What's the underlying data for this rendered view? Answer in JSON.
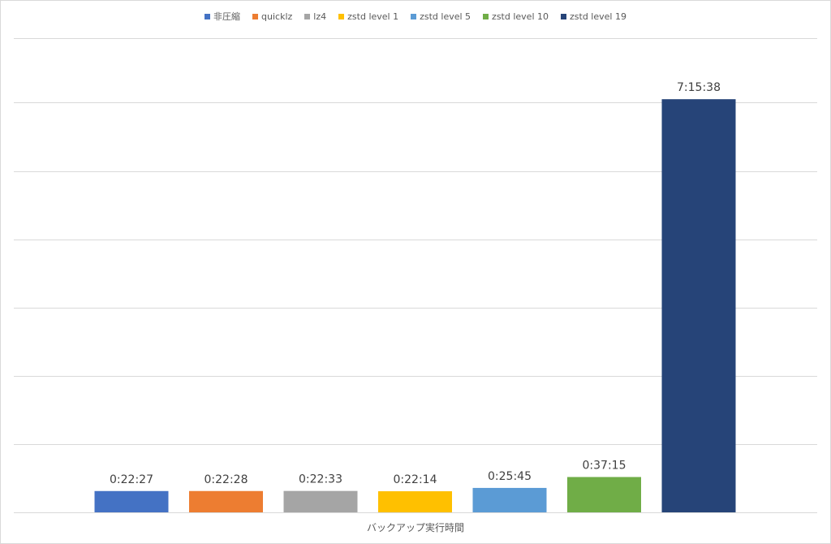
{
  "chart_data": {
    "type": "bar",
    "xlabel": "バックアップ実行時間",
    "ylabel": "",
    "unit": "seconds",
    "ylim": [
      0,
      30000
    ],
    "gridline_step": 4320,
    "grid": true,
    "legend_position": "top-center",
    "y_tick_labels_visible": false,
    "series": [
      {
        "name": "非圧縮",
        "value": 1347,
        "label": "0:22:27",
        "color": "#4472c4"
      },
      {
        "name": "quicklz",
        "value": 1348,
        "label": "0:22:28",
        "color": "#ed7d31"
      },
      {
        "name": "lz4",
        "value": 1353,
        "label": "0:22:33",
        "color": "#a5a5a5"
      },
      {
        "name": "zstd level 1",
        "value": 1334,
        "label": "0:22:14",
        "color": "#ffc000"
      },
      {
        "name": "zstd level 5",
        "value": 1545,
        "label": "0:25:45",
        "color": "#5b9bd5"
      },
      {
        "name": "zstd level 10",
        "value": 2235,
        "label": "0:37:15",
        "color": "#70ad47"
      },
      {
        "name": "zstd level 19",
        "value": 26138,
        "label": "7:15:38",
        "color": "#264478"
      }
    ]
  }
}
